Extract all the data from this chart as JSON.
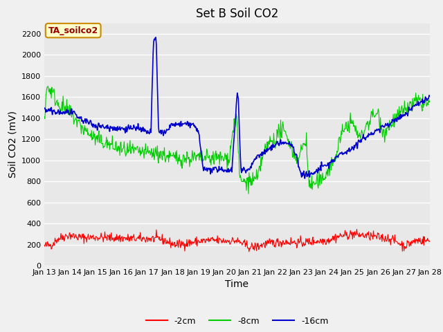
{
  "title": "Set B Soil CO2",
  "xlabel": "Time",
  "ylabel": "Soil CO2 (mV)",
  "annotation": "TA_soilco2",
  "ylim": [
    0,
    2300
  ],
  "yticks": [
    0,
    200,
    400,
    600,
    800,
    1000,
    1200,
    1400,
    1600,
    1800,
    2000,
    2200
  ],
  "line_colors": {
    "red": "#ff0000",
    "green": "#00cc00",
    "blue": "#0000cc"
  },
  "legend_labels": [
    "-2cm",
    "-8cm",
    "-16cm"
  ],
  "bg_color": "#f0f0f0",
  "plot_bg_color": "#e8e8e8",
  "grid_color": "#ffffff",
  "annotation_bg": "#ffffcc",
  "annotation_border": "#cc8800",
  "annotation_text_color": "#990000",
  "title_fontsize": 12,
  "axis_label_fontsize": 10,
  "tick_fontsize": 8,
  "legend_fontsize": 9
}
